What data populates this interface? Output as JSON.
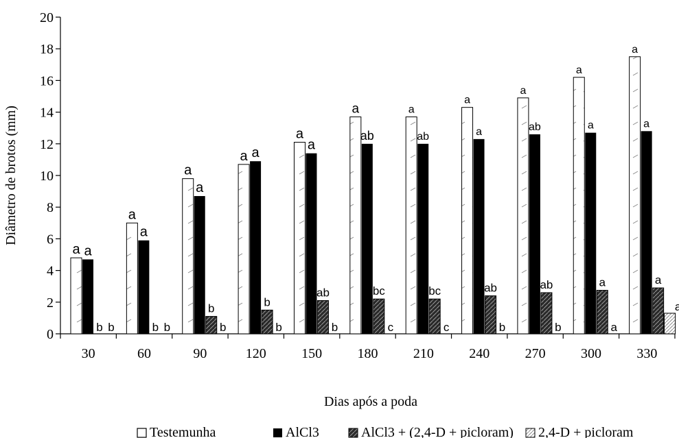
{
  "chart_data": {
    "type": "bar",
    "ylabel": "Diâmetro de brotos (mm)",
    "xlabel": "Dias após a poda",
    "ylim": [
      0,
      20
    ],
    "yticks": [
      0,
      2,
      4,
      6,
      8,
      10,
      12,
      14,
      16,
      18,
      20
    ],
    "grid": false,
    "legend_position": "bottom",
    "categories": [
      "30",
      "60",
      "90",
      "120",
      "150",
      "180",
      "210",
      "240",
      "270",
      "300",
      "330"
    ],
    "series": [
      {
        "name": "Testemunha",
        "fill": "#ffffff",
        "values": [
          4.8,
          7.0,
          9.8,
          10.7,
          12.1,
          13.7,
          13.7,
          14.3,
          14.9,
          16.2,
          17.5
        ],
        "letters": [
          "a",
          "a",
          "a",
          "a",
          "a",
          "a",
          "a",
          "a",
          "a",
          "a",
          "a"
        ]
      },
      {
        "name": "AlCl3",
        "fill": "#000000",
        "values": [
          4.7,
          5.9,
          8.7,
          10.9,
          11.4,
          12.0,
          12.0,
          12.3,
          12.6,
          12.7,
          12.8
        ],
        "letters": [
          "a",
          "a",
          "a",
          "a",
          "a",
          "ab",
          "ab",
          "a",
          "ab",
          "a",
          "a"
        ]
      },
      {
        "name": "AlCl3 + (2,4-D + picloram)",
        "fill": "#2a2a2a",
        "values": [
          0,
          0,
          1.1,
          1.5,
          2.1,
          2.2,
          2.2,
          2.4,
          2.6,
          2.75,
          2.9
        ],
        "letters": [
          "b",
          "b",
          "b",
          "b",
          "ab",
          "bc",
          "bc",
          "ab",
          "ab",
          "a",
          "a"
        ]
      },
      {
        "name": "2,4-D + picloram",
        "fill": "#ffffff",
        "values": [
          0,
          0,
          0,
          0,
          0,
          0,
          0,
          0,
          0,
          0,
          1.3
        ],
        "letters": [
          "b",
          "b",
          "b",
          "b",
          "b",
          "c",
          "c",
          "b",
          "b",
          "a",
          "a"
        ]
      }
    ]
  }
}
